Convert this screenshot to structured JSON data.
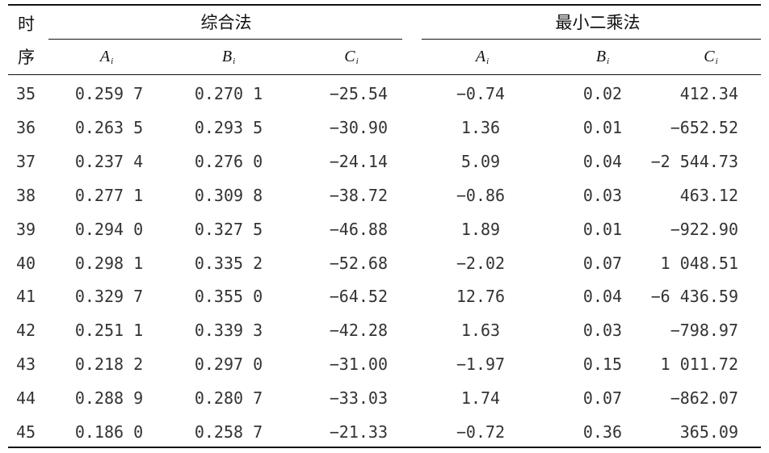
{
  "table": {
    "header": {
      "time_top": "时",
      "time_bottom": "序",
      "group1": "综合法",
      "group2": "最小二乘法",
      "col_letters": [
        "A",
        "B",
        "C",
        "A",
        "B",
        "C"
      ],
      "col_sub": "i"
    },
    "rows": [
      [
        "35",
        "0.259 7",
        "0.270 1",
        "−25.54",
        "−0.74",
        "0.02",
        "412.34"
      ],
      [
        "36",
        "0.263 5",
        "0.293 5",
        "−30.90",
        "1.36",
        "0.01",
        "−652.52"
      ],
      [
        "37",
        "0.237 4",
        "0.276 0",
        "−24.14",
        "5.09",
        "0.04",
        "−2 544.73"
      ],
      [
        "38",
        "0.277 1",
        "0.309 8",
        "−38.72",
        "−0.86",
        "0.03",
        "463.12"
      ],
      [
        "39",
        "0.294 0",
        "0.327 5",
        "−46.88",
        "1.89",
        "0.01",
        "−922.90"
      ],
      [
        "40",
        "0.298 1",
        "0.335 2",
        "−52.68",
        "−2.02",
        "0.07",
        "1 048.51"
      ],
      [
        "41",
        "0.329 7",
        "0.355 0",
        "−64.52",
        "12.76",
        "0.04",
        "−6 436.59"
      ],
      [
        "42",
        "0.251 1",
        "0.339 3",
        "−42.28",
        "1.63",
        "0.03",
        "−798.97"
      ],
      [
        "43",
        "0.218 2",
        "0.297 0",
        "−31.00",
        "−1.97",
        "0.15",
        "1 011.72"
      ],
      [
        "44",
        "0.288 9",
        "0.280 7",
        "−33.03",
        "1.74",
        "0.07",
        "−862.07"
      ],
      [
        "45",
        "0.186 0",
        "0.258 7",
        "−21.33",
        "−0.72",
        "0.36",
        "365.09"
      ]
    ]
  }
}
